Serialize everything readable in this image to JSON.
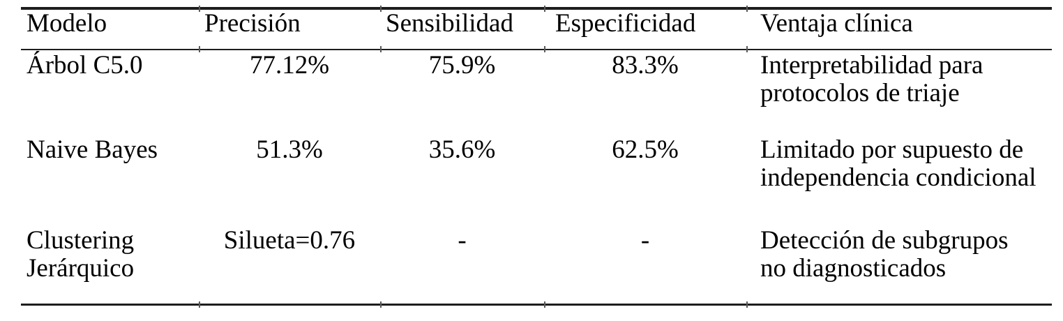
{
  "table": {
    "headers": [
      "Modelo",
      "Precisión",
      "Sensibilidad",
      "Especificidad",
      "Ventaja clínica"
    ],
    "rows": [
      {
        "cells": [
          [
            "Árbol C5.0"
          ],
          [
            "77.12%"
          ],
          [
            "75.9%"
          ],
          [
            "83.3%"
          ],
          [
            "Interpretabilidad para",
            "protocolos de triaje"
          ]
        ]
      },
      {
        "cells": [
          [
            "Naive Bayes"
          ],
          [
            "51.3%"
          ],
          [
            "35.6%"
          ],
          [
            "62.5%"
          ],
          [
            "Limitado por supuesto de",
            "independencia condicional"
          ]
        ]
      },
      {
        "cells": [
          [
            "Clustering",
            "Jerárquico"
          ],
          [
            "Silueta=0.76"
          ],
          [
            "-"
          ],
          [
            "-"
          ],
          [
            "Detección de subgrupos",
            "no diagnosticados"
          ]
        ]
      }
    ],
    "colors": {
      "text": "#000000",
      "rule": "#1d1d1d",
      "background": "#ffffff"
    }
  }
}
